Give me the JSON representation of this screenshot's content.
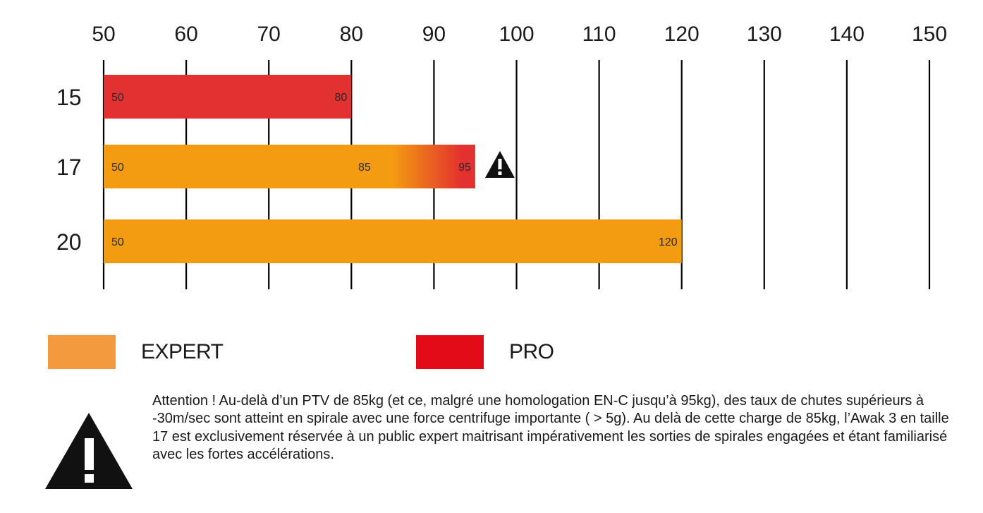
{
  "colors": {
    "expert": "#f39c11",
    "pro": "#e33030",
    "legend_expert": "#f39a3e",
    "legend_pro": "#e20b17",
    "axis": "#000000"
  },
  "chart_data": {
    "type": "bar",
    "orientation": "horizontal",
    "xlim": [
      50,
      150
    ],
    "x_ticks": [
      "50",
      "60",
      "70",
      "80",
      "90",
      "100",
      "110",
      "120",
      "130",
      "140",
      "150"
    ],
    "categories": [
      "15",
      "17",
      "20"
    ],
    "bars": [
      {
        "category": "15",
        "start": 50,
        "end": 80,
        "fill": "pro",
        "labels": [
          "50",
          "80"
        ],
        "label_values": [
          50,
          80
        ]
      },
      {
        "category": "17",
        "start": 50,
        "end": 95,
        "fill": "expert-to-pro",
        "gradient_from": 85,
        "gradient_to": 95,
        "labels": [
          "50",
          "85",
          "95"
        ],
        "label_values": [
          50,
          85,
          95
        ],
        "warning_icon": "warning-triangle-icon"
      },
      {
        "category": "20",
        "start": 50,
        "end": 120,
        "fill": "expert",
        "labels": [
          "50",
          "120"
        ],
        "label_values": [
          50,
          120
        ]
      }
    ],
    "legend": [
      {
        "name": "EXPERT",
        "color": "#f39a3e"
      },
      {
        "name": "PRO",
        "color": "#e20b17"
      }
    ],
    "legend_position": "bottom",
    "grid": true
  },
  "legend": {
    "expert_label": "EXPERT",
    "pro_label": "PRO"
  },
  "warning": {
    "icon": "warning-triangle-icon",
    "text": "Attention ! Au-delà d’un PTV de 85kg (et ce, malgré une homologation EN-C jusqu’à 95kg), des taux de chutes supérieurs à -30m/sec sont atteint en spirale avec une force centrifuge importante ( > 5g). Au delà de cette charge de 85kg, l’Awak 3 en taille 17 est exclusivement réservée à un public expert maitrisant impérativement les sorties de spirales engagées et étant familiarisé avec les fortes accélérations."
  }
}
